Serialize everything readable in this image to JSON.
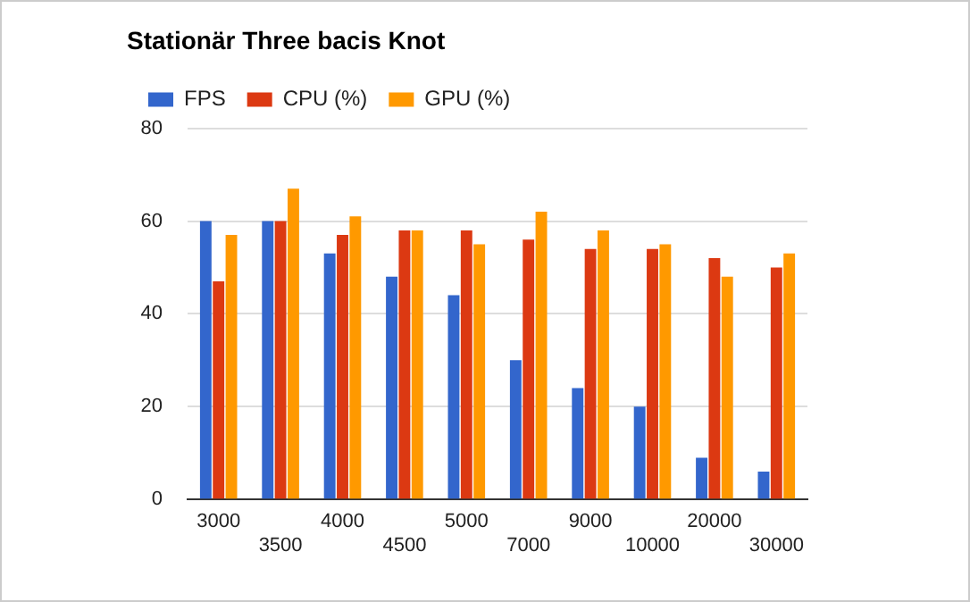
{
  "chart_data": {
    "type": "bar",
    "title": "Stationär Three bacis Knot",
    "categories": [
      "3000",
      "3500",
      "4000",
      "4500",
      "5000",
      "7000",
      "9000",
      "10000",
      "20000",
      "30000"
    ],
    "series": [
      {
        "name": "FPS",
        "color": "#3366cc",
        "values": [
          60,
          60,
          53,
          48,
          44,
          30,
          24,
          20,
          9,
          6
        ]
      },
      {
        "name": "CPU (%)",
        "color": "#dc3912",
        "values": [
          47,
          60,
          57,
          58,
          58,
          56,
          54,
          54,
          52,
          50
        ]
      },
      {
        "name": "GPU (%)",
        "color": "#ff9900",
        "values": [
          57,
          67,
          61,
          58,
          55,
          62,
          58,
          55,
          48,
          53
        ]
      }
    ],
    "ylim": [
      0,
      80
    ],
    "yticks": [
      0,
      20,
      40,
      60,
      80
    ],
    "grid": "y",
    "legend": "top left"
  }
}
